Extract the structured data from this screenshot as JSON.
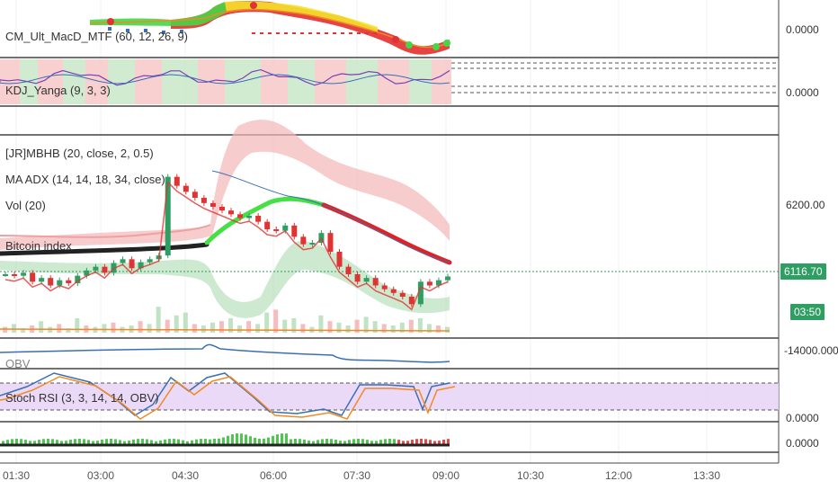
{
  "colors": {
    "bg": "#ffffff",
    "grid": "#eef0f3",
    "separator": "#444444",
    "up": "#2e9e62",
    "down": "#e03333",
    "blue_line": "#3b6fb3",
    "orange_line": "#f08a24",
    "purple_fill": "#e9d5f7",
    "bb_red": "#f4b6b6",
    "bb_green": "#b8e0bc"
  },
  "panes": {
    "macd": {
      "label": "CM_Ult_MacD_MTF (60, 12, 26, 9)",
      "axis": "0.0000"
    },
    "kdj": {
      "label": "KDJ_Yanga (9, 3, 3)",
      "axis": "0.0000"
    },
    "main": {
      "labels": [
        "[JR]MBHB (20, close, 2, 0.5)",
        "MA ADX (14, 14, 18, 34, close)",
        "Vol (20)",
        "Bitcoin index"
      ],
      "axis": "6200.00",
      "price": "6116.70",
      "timer": "03:50"
    },
    "obv": {
      "label": "OBV",
      "axis": "-14000.0000"
    },
    "stoch": {
      "label": "Stoch RSI (3, 3, 14, 14, OBV)",
      "axis": "0.0000"
    },
    "osc": {
      "axis": "0.0000"
    }
  },
  "time_axis": [
    "01:30",
    "03:00",
    "04:30",
    "06:00",
    "07:30",
    "09:00",
    "10:30",
    "12:00",
    "13:30"
  ],
  "chart_data": {
    "type": "candlestick",
    "title": "",
    "symbol_price_last": 6116.7,
    "x_ticks": [
      "01:30",
      "03:00",
      "04:30",
      "06:00",
      "07:30",
      "09:00",
      "10:30",
      "12:00",
      "13:30"
    ],
    "y_tick": 6200.0,
    "series": [
      {
        "name": "Bitcoin index",
        "close": [
          6120,
          6118,
          6122,
          6110,
          6115,
          6105,
          6112,
          6108,
          6118,
          6125,
          6130,
          6122,
          6135,
          6140,
          6128,
          6136,
          6140,
          6145,
          6250,
          6238,
          6230,
          6222,
          6215,
          6210,
          6205,
          6200,
          6195,
          6198,
          6190,
          6180,
          6178,
          6185,
          6170,
          6160,
          6162,
          6175,
          6150,
          6130,
          6120,
          6110,
          6115,
          6105,
          6100,
          6095,
          6090,
          6080,
          6110,
          6105,
          6112,
          6117
        ]
      }
    ]
  }
}
